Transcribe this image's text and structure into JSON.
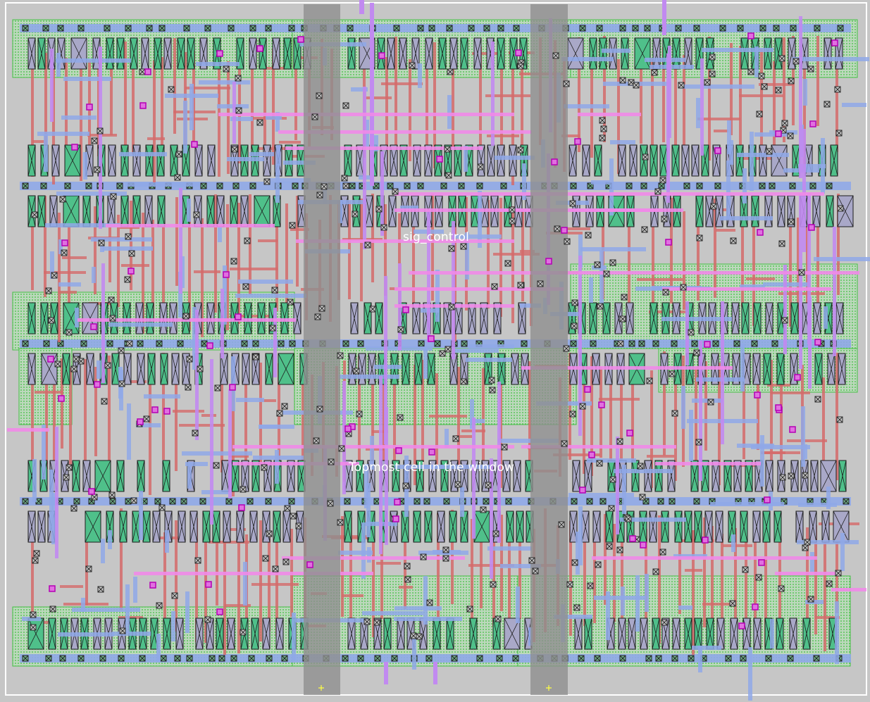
{
  "layout": {
    "labels": {
      "net": "sig_control",
      "cell": "Topmost cell in the window"
    },
    "colors": {
      "background": "#c6c6c6",
      "nwell": "#6fd36f",
      "active": "#4fc08a",
      "poly": "#d46a6a",
      "metal1": "#8fa8e8",
      "metal2": "#c18af0",
      "metal3": "#f08ae8",
      "contact": "#2b2b2b",
      "via": "#b400b4",
      "strap": "#8e8e8e",
      "boundary": "#ffffff"
    }
  }
}
